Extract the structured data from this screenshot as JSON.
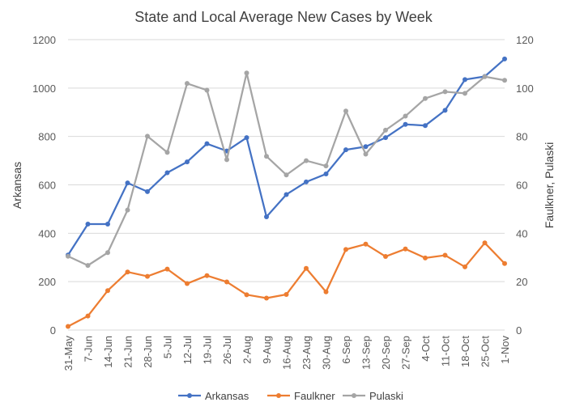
{
  "chart_data": {
    "type": "line",
    "title": "State and Local Average New Cases by Week",
    "ylabel": "Arkansas",
    "y2label": "Faulkner, Pulaski",
    "ylim": [
      0,
      1200
    ],
    "y2lim": [
      0,
      120
    ],
    "y_ticks": [
      "0",
      "200",
      "400",
      "600",
      "800",
      "1000",
      "1200"
    ],
    "y2_ticks": [
      "0",
      "20",
      "40",
      "60",
      "80",
      "100",
      "120"
    ],
    "grid": true,
    "legend_position": "bottom",
    "categories": [
      "31-May",
      "7-Jun",
      "14-Jun",
      "21-Jun",
      "28-Jun",
      "5-Jul",
      "12-Jul",
      "19-Jul",
      "26-Jul",
      "2-Aug",
      "9-Aug",
      "16-Aug",
      "23-Aug",
      "30-Aug",
      "6-Sep",
      "13-Sep",
      "20-Sep",
      "27-Sep",
      "4-Oct",
      "11-Oct",
      "18-Oct",
      "25-Oct",
      "1-Nov"
    ],
    "series": [
      {
        "name": "Arkansas",
        "axis": "left",
        "color": "#4472c4",
        "values": [
          310,
          438,
          438,
          608,
          572,
          650,
          695,
          770,
          740,
          795,
          468,
          560,
          612,
          645,
          745,
          758,
          795,
          850,
          845,
          908,
          1035,
          1048,
          1120
        ]
      },
      {
        "name": "Faulkner",
        "axis": "right",
        "color": "#ed7d31",
        "values": [
          1.5,
          5.8,
          16.3,
          24,
          22.2,
          25.2,
          19.2,
          22.5,
          19.9,
          14.6,
          13.2,
          14.7,
          25.5,
          15.8,
          33.3,
          35.5,
          30.4,
          33.5,
          29.8,
          30.9,
          26.1,
          36.0,
          27.5
        ]
      },
      {
        "name": "Pulaski",
        "axis": "right",
        "color": "#a5a5a5",
        "values": [
          30.5,
          26.7,
          32,
          49.6,
          80.1,
          73.4,
          101.9,
          99.1,
          70.4,
          106.2,
          71.8,
          64.1,
          70,
          67.8,
          90.5,
          72.7,
          82.6,
          88.4,
          95.7,
          98.5,
          97.8,
          104.7,
          103.2
        ]
      }
    ]
  }
}
